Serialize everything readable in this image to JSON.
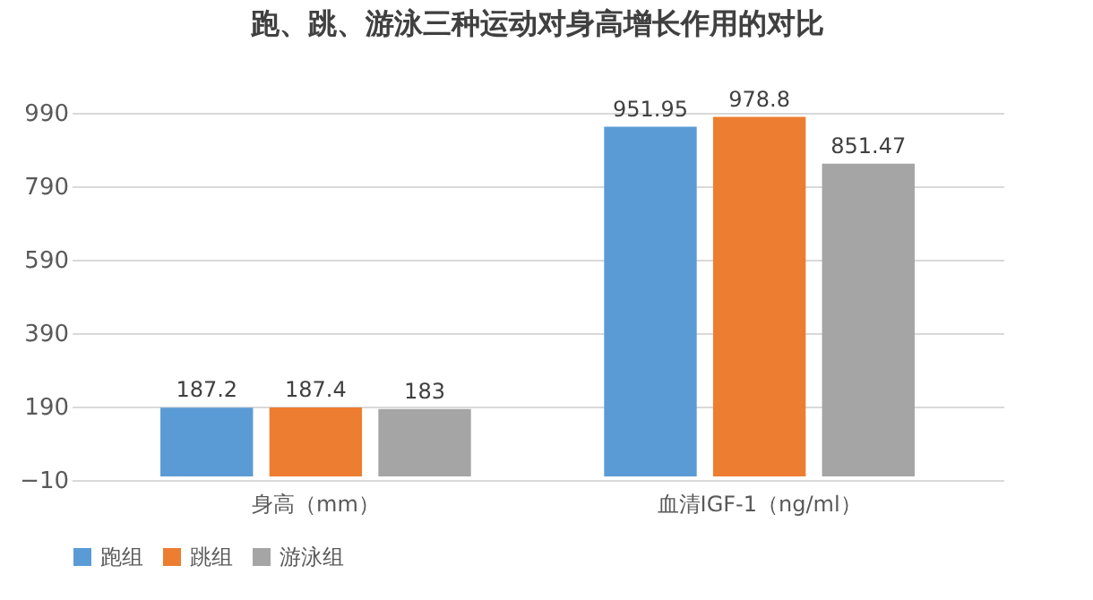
{
  "chart_data": {
    "type": "bar",
    "title": "跑、跳、游泳三种运动对身高增长作用的对比",
    "categories": [
      "身高（mm）",
      "血清IGF-1（ng/ml）"
    ],
    "series": [
      {
        "name": "跑组",
        "color": "#5b9bd5",
        "values": [
          187.2,
          951.95
        ]
      },
      {
        "name": "跳组",
        "color": "#ed7d31",
        "values": [
          187.4,
          978.8
        ]
      },
      {
        "name": "游泳组",
        "color": "#a5a5a5",
        "values": [
          183,
          851.47
        ]
      }
    ],
    "ylim": [
      -10,
      990
    ],
    "yticks": [
      -10,
      190,
      390,
      590,
      790,
      990
    ],
    "grid": "y",
    "legend": "bottom",
    "data_labels": true
  }
}
